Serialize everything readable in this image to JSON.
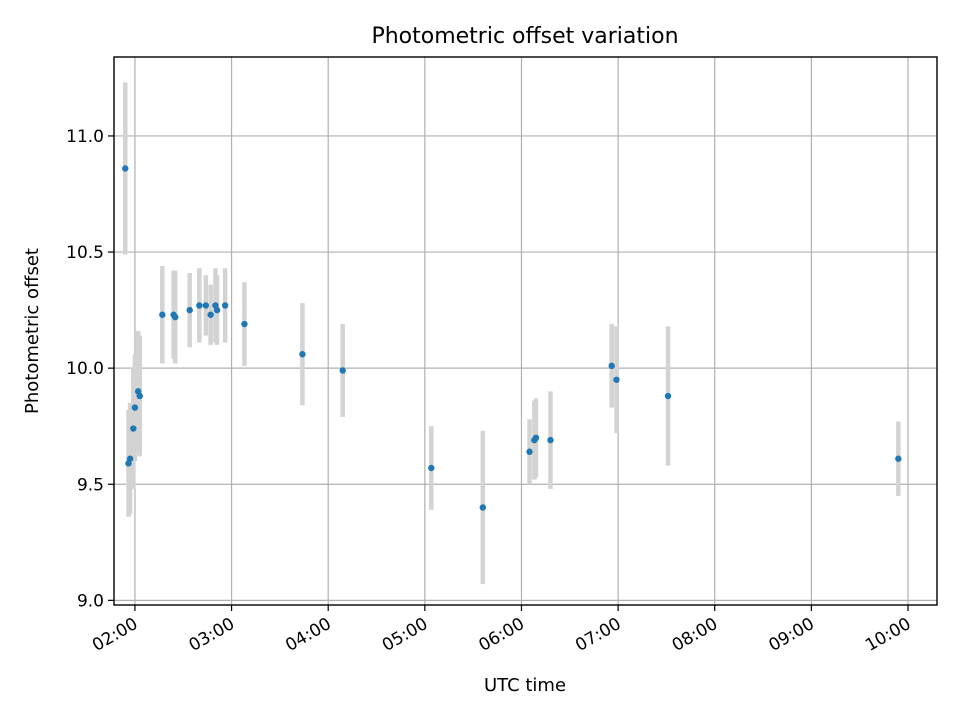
{
  "chart_data": {
    "type": "scatter",
    "title": "Photometric offset variation",
    "xlabel": "UTC time",
    "ylabel": "Photometric offset",
    "grid": true,
    "x_tick_labels": [
      "02:00",
      "03:00",
      "04:00",
      "05:00",
      "06:00",
      "07:00",
      "08:00",
      "09:00",
      "10:00"
    ],
    "y_tick_labels": [
      "9.0",
      "9.5",
      "10.0",
      "10.5",
      "11.0"
    ],
    "xlim": [
      "01:47",
      "10:18"
    ],
    "ylim": [
      8.98,
      11.34
    ],
    "colors": {
      "marker": "#1f77b4",
      "errorbar": "#d3d3d3"
    },
    "points": [
      {
        "x": "01:54",
        "y": 10.86,
        "err": 0.37
      },
      {
        "x": "01:56",
        "y": 9.59,
        "err": 0.23
      },
      {
        "x": "01:57",
        "y": 9.61,
        "err": 0.24
      },
      {
        "x": "01:59",
        "y": 9.74,
        "err": 0.26
      },
      {
        "x": "02:00",
        "y": 9.83,
        "err": 0.23
      },
      {
        "x": "02:02",
        "y": 9.9,
        "err": 0.26
      },
      {
        "x": "02:03",
        "y": 9.88,
        "err": 0.26
      },
      {
        "x": "02:17",
        "y": 10.23,
        "err": 0.21
      },
      {
        "x": "02:24",
        "y": 10.23,
        "err": 0.19
      },
      {
        "x": "02:25",
        "y": 10.22,
        "err": 0.2
      },
      {
        "x": "02:34",
        "y": 10.25,
        "err": 0.16
      },
      {
        "x": "02:40",
        "y": 10.27,
        "err": 0.16
      },
      {
        "x": "02:44",
        "y": 10.27,
        "err": 0.13
      },
      {
        "x": "02:47",
        "y": 10.23,
        "err": 0.13
      },
      {
        "x": "02:50",
        "y": 10.27,
        "err": 0.16
      },
      {
        "x": "02:51",
        "y": 10.25,
        "err": 0.15
      },
      {
        "x": "02:56",
        "y": 10.27,
        "err": 0.16
      },
      {
        "x": "03:08",
        "y": 10.19,
        "err": 0.18
      },
      {
        "x": "03:44",
        "y": 10.06,
        "err": 0.22
      },
      {
        "x": "04:09",
        "y": 9.99,
        "err": 0.2
      },
      {
        "x": "05:04",
        "y": 9.57,
        "err": 0.18
      },
      {
        "x": "05:36",
        "y": 9.4,
        "err": 0.33
      },
      {
        "x": "06:05",
        "y": 9.64,
        "err": 0.14
      },
      {
        "x": "06:08",
        "y": 9.69,
        "err": 0.17
      },
      {
        "x": "06:09",
        "y": 9.7,
        "err": 0.17
      },
      {
        "x": "06:18",
        "y": 9.69,
        "err": 0.21
      },
      {
        "x": "06:56",
        "y": 10.01,
        "err": 0.18
      },
      {
        "x": "06:59",
        "y": 9.95,
        "err": 0.23
      },
      {
        "x": "07:31",
        "y": 9.88,
        "err": 0.3
      },
      {
        "x": "09:54",
        "y": 9.61,
        "err": 0.16
      }
    ]
  }
}
